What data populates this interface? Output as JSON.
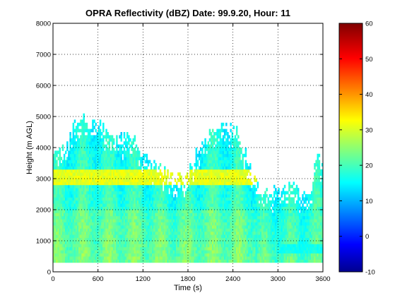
{
  "chart_data": {
    "type": "heatmap",
    "title": "OPRA Reflectivity (dBZ)  Date: 99.9.20, Hour: 11",
    "xlabel": "Time (s)",
    "ylabel": "Height (m AGL)",
    "xlim": [
      0,
      3600
    ],
    "ylim": [
      0,
      8000
    ],
    "xticks": [
      0,
      600,
      1200,
      1800,
      2400,
      3000,
      3600
    ],
    "yticks": [
      0,
      1000,
      2000,
      3000,
      4000,
      5000,
      6000,
      7000,
      8000
    ],
    "grid": true,
    "colormap": "jet",
    "colorbar": {
      "range": [
        -10,
        60
      ],
      "ticks": [
        -10,
        0,
        10,
        20,
        30,
        40,
        50,
        60
      ]
    },
    "data_floor_m": 300,
    "echo_top_profile": {
      "time_s": [
        0,
        150,
        250,
        400,
        600,
        850,
        1050,
        1250,
        1450,
        1650,
        1800,
        1950,
        2100,
        2250,
        2400,
        2550,
        2650,
        2750,
        2900,
        3050,
        3200,
        3350,
        3450,
        3520,
        3600
      ],
      "top_m": [
        3700,
        3900,
        4600,
        4800,
        4700,
        4300,
        4200,
        3600,
        3300,
        2900,
        3100,
        4000,
        4400,
        4700,
        4600,
        4000,
        3000,
        2600,
        2500,
        2600,
        2700,
        2400,
        2500,
        3800,
        3300
      ]
    },
    "bright_band": {
      "height_m": [
        2800,
        3200
      ],
      "peak_dBZ": 33,
      "time_s": [
        0,
        2700
      ]
    }
  }
}
